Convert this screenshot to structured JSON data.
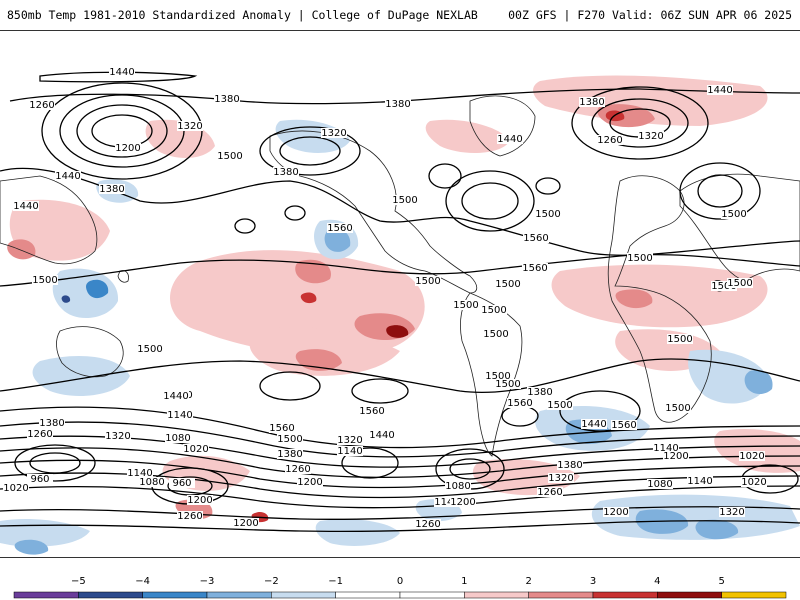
{
  "header": {
    "title": "850mb Temp 1981-2010 Standardized Anomaly | College of DuPage NEXLAB",
    "run_info": "00Z GFS | F270 Valid: 06Z SUN APR 06 2025"
  },
  "colors": {
    "neg5": "#6a3d9a",
    "neg4": "#2c4a8c",
    "neg3": "#3a86c8",
    "neg2": "#7fb0dc",
    "neg1": "#c7dcef",
    "zero_neg": "#ffffff",
    "zero_pos": "#ffffff",
    "pos1": "#f6c9c9",
    "pos2": "#e48a8a",
    "pos3": "#c83232",
    "pos4": "#8e0e0e",
    "pos5": "#f2c200"
  },
  "colorbar": {
    "ticks": [
      "−5",
      "−4",
      "−3",
      "−2",
      "−1",
      "0",
      "1",
      "2",
      "3",
      "4",
      "5"
    ]
  },
  "contour_labels": [
    "1440",
    "1260",
    "1380",
    "1320",
    "1200",
    "1500",
    "1440",
    "1380",
    "1440",
    "1500",
    "1560",
    "1320",
    "1380",
    "1500",
    "1560",
    "1380",
    "1440",
    "1500",
    "1560",
    "1500",
    "1500",
    "1500",
    "1380",
    "1260",
    "1320",
    "1440",
    "1500",
    "1500",
    "1500",
    "1500",
    "1500",
    "1440",
    "1500",
    "1560",
    "1500",
    "1560",
    "1440",
    "1380",
    "1260",
    "1320",
    "1140",
    "1080",
    "1020",
    "960",
    "1140",
    "1080",
    "960",
    "1020",
    "1200",
    "1260",
    "1200",
    "1560",
    "1500",
    "1320",
    "1440",
    "1140",
    "1380",
    "1260",
    "1200",
    "1080",
    "1140",
    "1200",
    "1260",
    "1380",
    "1320",
    "1260",
    "1200",
    "1140",
    "1200",
    "1080",
    "1140",
    "1020",
    "1320",
    "1500",
    "1440",
    "1560",
    "1020",
    "1380",
    "1500",
    "1500",
    "1500",
    "1500"
  ]
}
